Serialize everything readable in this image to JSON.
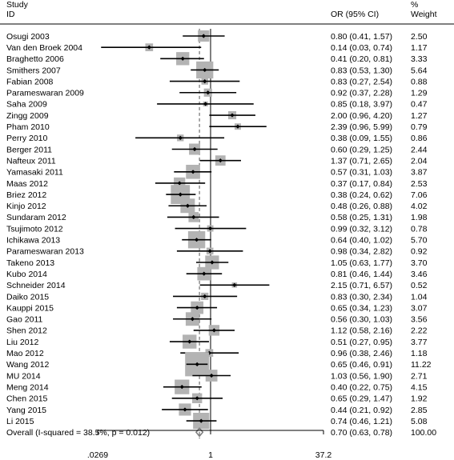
{
  "chart_data": {
    "type": "forest",
    "headers": {
      "study_line1": "Study",
      "study_line2": "ID",
      "or": "OR (95% CI)",
      "weight_line1": "%",
      "weight_line2": "Weight"
    },
    "x_scale": "log",
    "xlim": [
      0.0269,
      37.2
    ],
    "xticks": [
      {
        "value": 0.0269,
        "label": ".0269"
      },
      {
        "value": 1,
        "label": "1"
      },
      {
        "value": 37.2,
        "label": "37.2"
      }
    ],
    "null_line": 1,
    "studies": [
      {
        "id": "Osugi 2003",
        "or": 0.8,
        "lo": 0.41,
        "hi": 1.57,
        "ci_text": "0.80 (0.41, 1.57)",
        "weight": 2.5,
        "weight_text": "2.50"
      },
      {
        "id": "Van den Broek 2004",
        "or": 0.14,
        "lo": 0.03,
        "hi": 0.74,
        "ci_text": "0.14 (0.03, 0.74)",
        "weight": 1.17,
        "weight_text": "1.17"
      },
      {
        "id": "Braghetto 2006",
        "or": 0.41,
        "lo": 0.2,
        "hi": 0.81,
        "ci_text": "0.41 (0.20, 0.81)",
        "weight": 3.33,
        "weight_text": "3.33"
      },
      {
        "id": "Smithers 2007",
        "or": 0.83,
        "lo": 0.53,
        "hi": 1.3,
        "ci_text": "0.83 (0.53, 1.30)",
        "weight": 5.64,
        "weight_text": "5.64"
      },
      {
        "id": "Fabian 2008",
        "or": 0.83,
        "lo": 0.27,
        "hi": 2.54,
        "ci_text": "0.83 (0.27, 2.54)",
        "weight": 0.88,
        "weight_text": "0.88"
      },
      {
        "id": "Parameswaran 2009",
        "or": 0.92,
        "lo": 0.37,
        "hi": 2.28,
        "ci_text": "0.92 (0.37, 2.28)",
        "weight": 1.29,
        "weight_text": "1.29"
      },
      {
        "id": "Saha 2009",
        "or": 0.85,
        "lo": 0.18,
        "hi": 3.97,
        "ci_text": "0.85 (0.18, 3.97)",
        "weight": 0.47,
        "weight_text": "0.47"
      },
      {
        "id": "Zingg 2009",
        "or": 2.0,
        "lo": 0.96,
        "hi": 4.2,
        "ci_text": "2.00 (0.96, 4.20)",
        "weight": 1.27,
        "weight_text": "1.27"
      },
      {
        "id": "Pham 2010",
        "or": 2.39,
        "lo": 0.96,
        "hi": 5.99,
        "ci_text": "2.39 (0.96, 5.99)",
        "weight": 0.79,
        "weight_text": "0.79"
      },
      {
        "id": "Perry 2010",
        "or": 0.38,
        "lo": 0.09,
        "hi": 1.55,
        "ci_text": "0.38 (0.09, 1.55)",
        "weight": 0.86,
        "weight_text": "0.86"
      },
      {
        "id": "Berger 2011",
        "or": 0.6,
        "lo": 0.29,
        "hi": 1.25,
        "ci_text": "0.60 (0.29, 1.25)",
        "weight": 2.44,
        "weight_text": "2.44"
      },
      {
        "id": "Nafteux 2011",
        "or": 1.37,
        "lo": 0.71,
        "hi": 2.65,
        "ci_text": "1.37 (0.71, 2.65)",
        "weight": 2.04,
        "weight_text": "2.04"
      },
      {
        "id": "Yamasaki 2011",
        "or": 0.57,
        "lo": 0.31,
        "hi": 1.03,
        "ci_text": "0.57 (0.31, 1.03)",
        "weight": 3.87,
        "weight_text": "3.87"
      },
      {
        "id": "Maas 2012",
        "or": 0.37,
        "lo": 0.17,
        "hi": 0.84,
        "ci_text": "0.37 (0.17, 0.84)",
        "weight": 2.53,
        "weight_text": "2.53"
      },
      {
        "id": "Briez 2012",
        "or": 0.38,
        "lo": 0.24,
        "hi": 0.62,
        "ci_text": "0.38 (0.24, 0.62)",
        "weight": 7.06,
        "weight_text": "7.06"
      },
      {
        "id": "Kinjo 2012",
        "or": 0.48,
        "lo": 0.26,
        "hi": 0.88,
        "ci_text": "0.48 (0.26, 0.88)",
        "weight": 4.02,
        "weight_text": "4.02"
      },
      {
        "id": "Sundaram 2012",
        "or": 0.58,
        "lo": 0.25,
        "hi": 1.31,
        "ci_text": "0.58 (0.25, 1.31)",
        "weight": 1.98,
        "weight_text": "1.98"
      },
      {
        "id": "Tsujimoto 2012",
        "or": 0.99,
        "lo": 0.32,
        "hi": 3.12,
        "ci_text": "0.99 (0.32, 3.12)",
        "weight": 0.78,
        "weight_text": "0.78"
      },
      {
        "id": "Ichikawa 2013",
        "or": 0.64,
        "lo": 0.4,
        "hi": 1.02,
        "ci_text": "0.64 (0.40, 1.02)",
        "weight": 5.7,
        "weight_text": "5.70"
      },
      {
        "id": "Parameswaran 2013",
        "or": 0.98,
        "lo": 0.34,
        "hi": 2.82,
        "ci_text": "0.98 (0.34, 2.82)",
        "weight": 0.92,
        "weight_text": "0.92"
      },
      {
        "id": "Takeno 2013",
        "or": 1.05,
        "lo": 0.63,
        "hi": 1.77,
        "ci_text": "1.05 (0.63, 1.77)",
        "weight": 3.7,
        "weight_text": "3.70"
      },
      {
        "id": "Kubo 2014",
        "or": 0.81,
        "lo": 0.46,
        "hi": 1.44,
        "ci_text": "0.81 (0.46, 1.44)",
        "weight": 3.46,
        "weight_text": "3.46"
      },
      {
        "id": "Schneider 2014",
        "or": 2.15,
        "lo": 0.71,
        "hi": 6.57,
        "ci_text": "2.15 (0.71, 6.57)",
        "weight": 0.52,
        "weight_text": "0.52"
      },
      {
        "id": "Daiko 2015",
        "or": 0.83,
        "lo": 0.3,
        "hi": 2.34,
        "ci_text": "0.83 (0.30, 2.34)",
        "weight": 1.04,
        "weight_text": "1.04"
      },
      {
        "id": "Kauppi 2015",
        "or": 0.65,
        "lo": 0.34,
        "hi": 1.23,
        "ci_text": "0.65 (0.34, 1.23)",
        "weight": 3.07,
        "weight_text": "3.07"
      },
      {
        "id": "Gao 2011",
        "or": 0.56,
        "lo": 0.3,
        "hi": 1.03,
        "ci_text": "0.56 (0.30, 1.03)",
        "weight": 3.56,
        "weight_text": "3.56"
      },
      {
        "id": "Shen 2012",
        "or": 1.12,
        "lo": 0.58,
        "hi": 2.16,
        "ci_text": "1.12 (0.58, 2.16)",
        "weight": 2.22,
        "weight_text": "2.22"
      },
      {
        "id": "Liu 2012",
        "or": 0.51,
        "lo": 0.27,
        "hi": 0.95,
        "ci_text": "0.51 (0.27, 0.95)",
        "weight": 3.77,
        "weight_text": "3.77"
      },
      {
        "id": "Mao 2012",
        "or": 0.96,
        "lo": 0.38,
        "hi": 2.46,
        "ci_text": "0.96 (0.38, 2.46)",
        "weight": 1.18,
        "weight_text": "1.18"
      },
      {
        "id": "Wang 2012",
        "or": 0.65,
        "lo": 0.46,
        "hi": 0.91,
        "ci_text": "0.65 (0.46, 0.91)",
        "weight": 11.22,
        "weight_text": "11.22"
      },
      {
        "id": "MU 2014",
        "or": 1.03,
        "lo": 0.56,
        "hi": 1.9,
        "ci_text": "1.03 (0.56, 1.90)",
        "weight": 2.71,
        "weight_text": "2.71"
      },
      {
        "id": "Meng 2014",
        "or": 0.4,
        "lo": 0.22,
        "hi": 0.75,
        "ci_text": "0.40 (0.22, 0.75)",
        "weight": 4.15,
        "weight_text": "4.15"
      },
      {
        "id": "Chen 2015",
        "or": 0.65,
        "lo": 0.29,
        "hi": 1.47,
        "ci_text": "0.65 (0.29, 1.47)",
        "weight": 1.92,
        "weight_text": "1.92"
      },
      {
        "id": "Yang 2015",
        "or": 0.44,
        "lo": 0.21,
        "hi": 0.92,
        "ci_text": "0.44 (0.21, 0.92)",
        "weight": 2.85,
        "weight_text": "2.85"
      },
      {
        "id": "Li 2015",
        "or": 0.74,
        "lo": 0.46,
        "hi": 1.21,
        "ci_text": "0.74 (0.46, 1.21)",
        "weight": 5.08,
        "weight_text": "5.08"
      }
    ],
    "overall": {
      "id": "Overall  (I-squared = 38.5%, p = 0.012)",
      "or": 0.7,
      "lo": 0.63,
      "hi": 0.78,
      "ci_text": "0.70 (0.63, 0.78)",
      "weight_text": "100.00"
    },
    "colors": {
      "weight_box": "#b3b3b3",
      "point": "#000000",
      "ci_line": "#000000",
      "overall_diamond": "#7f7f7f",
      "axis": "#000000"
    }
  }
}
